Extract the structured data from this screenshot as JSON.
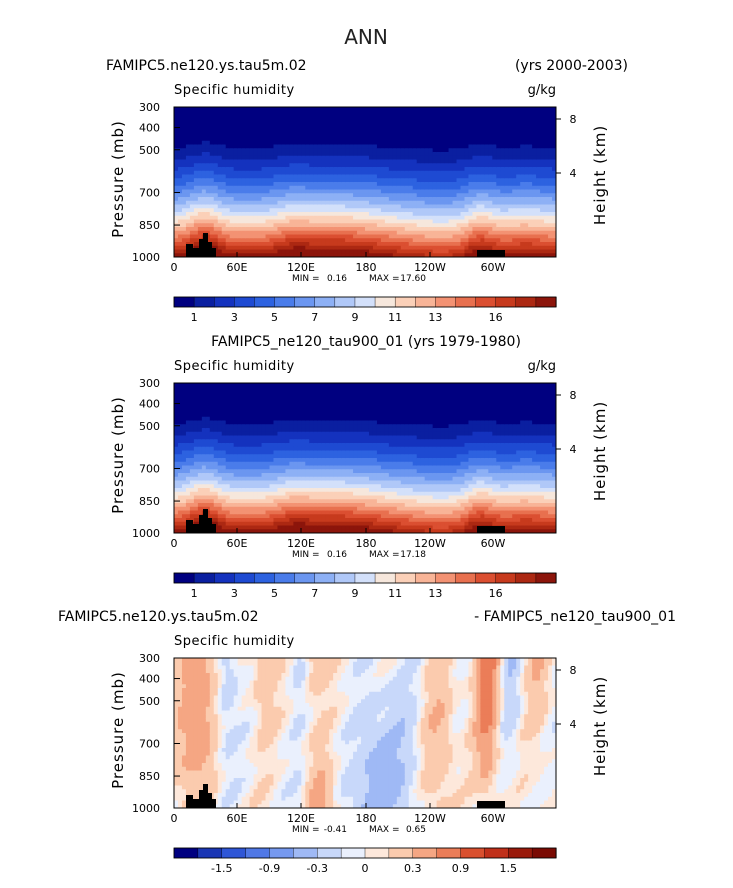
{
  "page_title": "ANN",
  "colors": {
    "blue_scale": [
      "#000080",
      "#0a1fa0",
      "#1432be",
      "#1e4ad2",
      "#2d62e0",
      "#4a7cea",
      "#6b96f0",
      "#8db0f5",
      "#b0c8f8",
      "#d3e0fa",
      "#f6e7dc",
      "#fbd0b8",
      "#f8b497",
      "#f39273",
      "#e8704f",
      "#db4f31",
      "#c73a1d",
      "#ac2812",
      "#8c150b"
    ],
    "diff_scale": [
      "#000080",
      "#1a36b4",
      "#2f56d6",
      "#5078e6",
      "#7699ef",
      "#9fb9f5",
      "#c8d8fa",
      "#eaf0fd",
      "#fde8db",
      "#fbcbae",
      "#f5a683",
      "#eb7d58",
      "#d9502f",
      "#c0301a",
      "#9a1a0b",
      "#7a0a03"
    ],
    "land": "#000000"
  },
  "chart_data": [
    {
      "type": "heatmap",
      "title_left": "FAMIPC5.ne120.ys.tau5m.02",
      "title_right": "(yrs 2000-2003)",
      "title_center": "",
      "subtitle": "Specific humidity",
      "units": "g/kg",
      "ylabel": "Pressure (mb)",
      "y2label": "Height (km)",
      "y_ticks": [
        "300",
        "400",
        "500",
        "700",
        "850",
        "1000"
      ],
      "y2_ticks": [
        "8",
        "4"
      ],
      "x_ticks": [
        "0",
        "60E",
        "120E",
        "180",
        "120W",
        "60W"
      ],
      "min_label": "MIN =",
      "min_value": "0.16",
      "max_label": "MAX =",
      "max_value": "17.60",
      "colorbar_labels": [
        "1",
        "3",
        "5",
        "7",
        "9",
        "11",
        "13",
        "16"
      ],
      "ylim": [
        1000,
        300
      ]
    },
    {
      "type": "heatmap",
      "title_left": "",
      "title_right": "",
      "title_center": "FAMIPC5_ne120_tau900_01 (yrs 1979-1980)",
      "subtitle": "Specific humidity",
      "units": "g/kg",
      "ylabel": "Pressure (mb)",
      "y2label": "Height (km)",
      "y_ticks": [
        "300",
        "400",
        "500",
        "700",
        "850",
        "1000"
      ],
      "y2_ticks": [
        "8",
        "4"
      ],
      "x_ticks": [
        "0",
        "60E",
        "120E",
        "180",
        "120W",
        "60W"
      ],
      "min_label": "MIN =",
      "min_value": "0.16",
      "max_label": "MAX =",
      "max_value": "17.18",
      "colorbar_labels": [
        "1",
        "3",
        "5",
        "7",
        "9",
        "11",
        "13",
        "16"
      ],
      "ylim": [
        1000,
        300
      ]
    },
    {
      "type": "heatmap",
      "title_left": "FAMIPC5.ne120.ys.tau5m.02",
      "title_right": "- FAMIPC5_ne120_tau900_01",
      "title_center": "",
      "subtitle": "Specific humidity",
      "units": "",
      "ylabel": "Pressure (mb)",
      "y2label": "Height (km)",
      "y_ticks": [
        "300",
        "400",
        "500",
        "700",
        "850",
        "1000"
      ],
      "y2_ticks": [
        "8",
        "4"
      ],
      "x_ticks": [
        "0",
        "60E",
        "120E",
        "180",
        "120W",
        "60W"
      ],
      "min_label": "MIN =",
      "min_value": "-0.41",
      "max_label": "MAX =",
      "max_value": "0.65",
      "colorbar_labels": [
        "-1.5",
        "-0.9",
        "-0.3",
        "0",
        "0.3",
        "0.9",
        "1.5"
      ],
      "ylim": [
        1000,
        300
      ]
    }
  ]
}
